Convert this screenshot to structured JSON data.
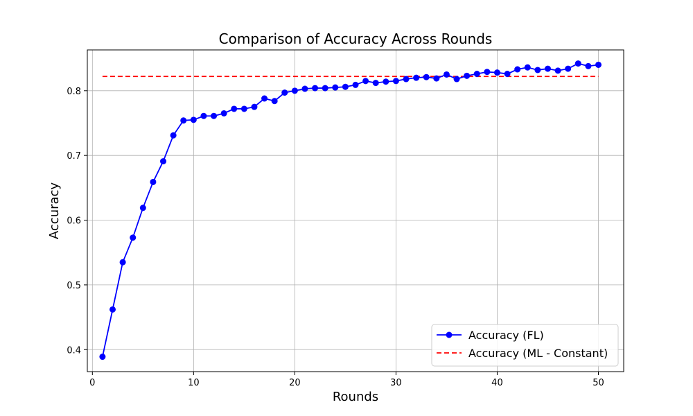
{
  "chart_data": {
    "type": "line",
    "title": "Comparison of Accuracy Across Rounds",
    "xlabel": "Rounds",
    "ylabel": "Accuracy",
    "xlim": [
      -0.5,
      52.5
    ],
    "ylim": [
      0.366,
      0.863
    ],
    "xticks": [
      0,
      10,
      20,
      30,
      40,
      50
    ],
    "yticks": [
      0.4,
      0.5,
      0.6,
      0.7,
      0.8
    ],
    "ytick_labels": [
      "0.4",
      "0.5",
      "0.6",
      "0.7",
      "0.8"
    ],
    "grid": true,
    "legend_position": "lower-right",
    "series": [
      {
        "name": "Accuracy (FL)",
        "style": "solid-with-markers",
        "color": "#0000ff",
        "x": [
          1,
          2,
          3,
          4,
          5,
          6,
          7,
          8,
          9,
          10,
          11,
          12,
          13,
          14,
          15,
          16,
          17,
          18,
          19,
          20,
          21,
          22,
          23,
          24,
          25,
          26,
          27,
          28,
          29,
          30,
          31,
          32,
          33,
          34,
          35,
          36,
          37,
          38,
          39,
          40,
          41,
          42,
          43,
          44,
          45,
          46,
          47,
          48,
          49,
          50
        ],
        "y": [
          0.389,
          0.462,
          0.535,
          0.573,
          0.619,
          0.659,
          0.691,
          0.731,
          0.754,
          0.755,
          0.761,
          0.761,
          0.765,
          0.772,
          0.772,
          0.775,
          0.788,
          0.784,
          0.797,
          0.8,
          0.803,
          0.804,
          0.804,
          0.805,
          0.806,
          0.809,
          0.815,
          0.812,
          0.814,
          0.815,
          0.818,
          0.82,
          0.821,
          0.819,
          0.825,
          0.818,
          0.823,
          0.826,
          0.829,
          0.828,
          0.826,
          0.833,
          0.836,
          0.832,
          0.834,
          0.831,
          0.834,
          0.842,
          0.838,
          0.84
        ]
      },
      {
        "name": "Accuracy (ML - Constant)",
        "style": "dashed",
        "color": "#ff0000",
        "x": [
          1,
          50
        ],
        "y": [
          0.822,
          0.822
        ]
      }
    ]
  }
}
